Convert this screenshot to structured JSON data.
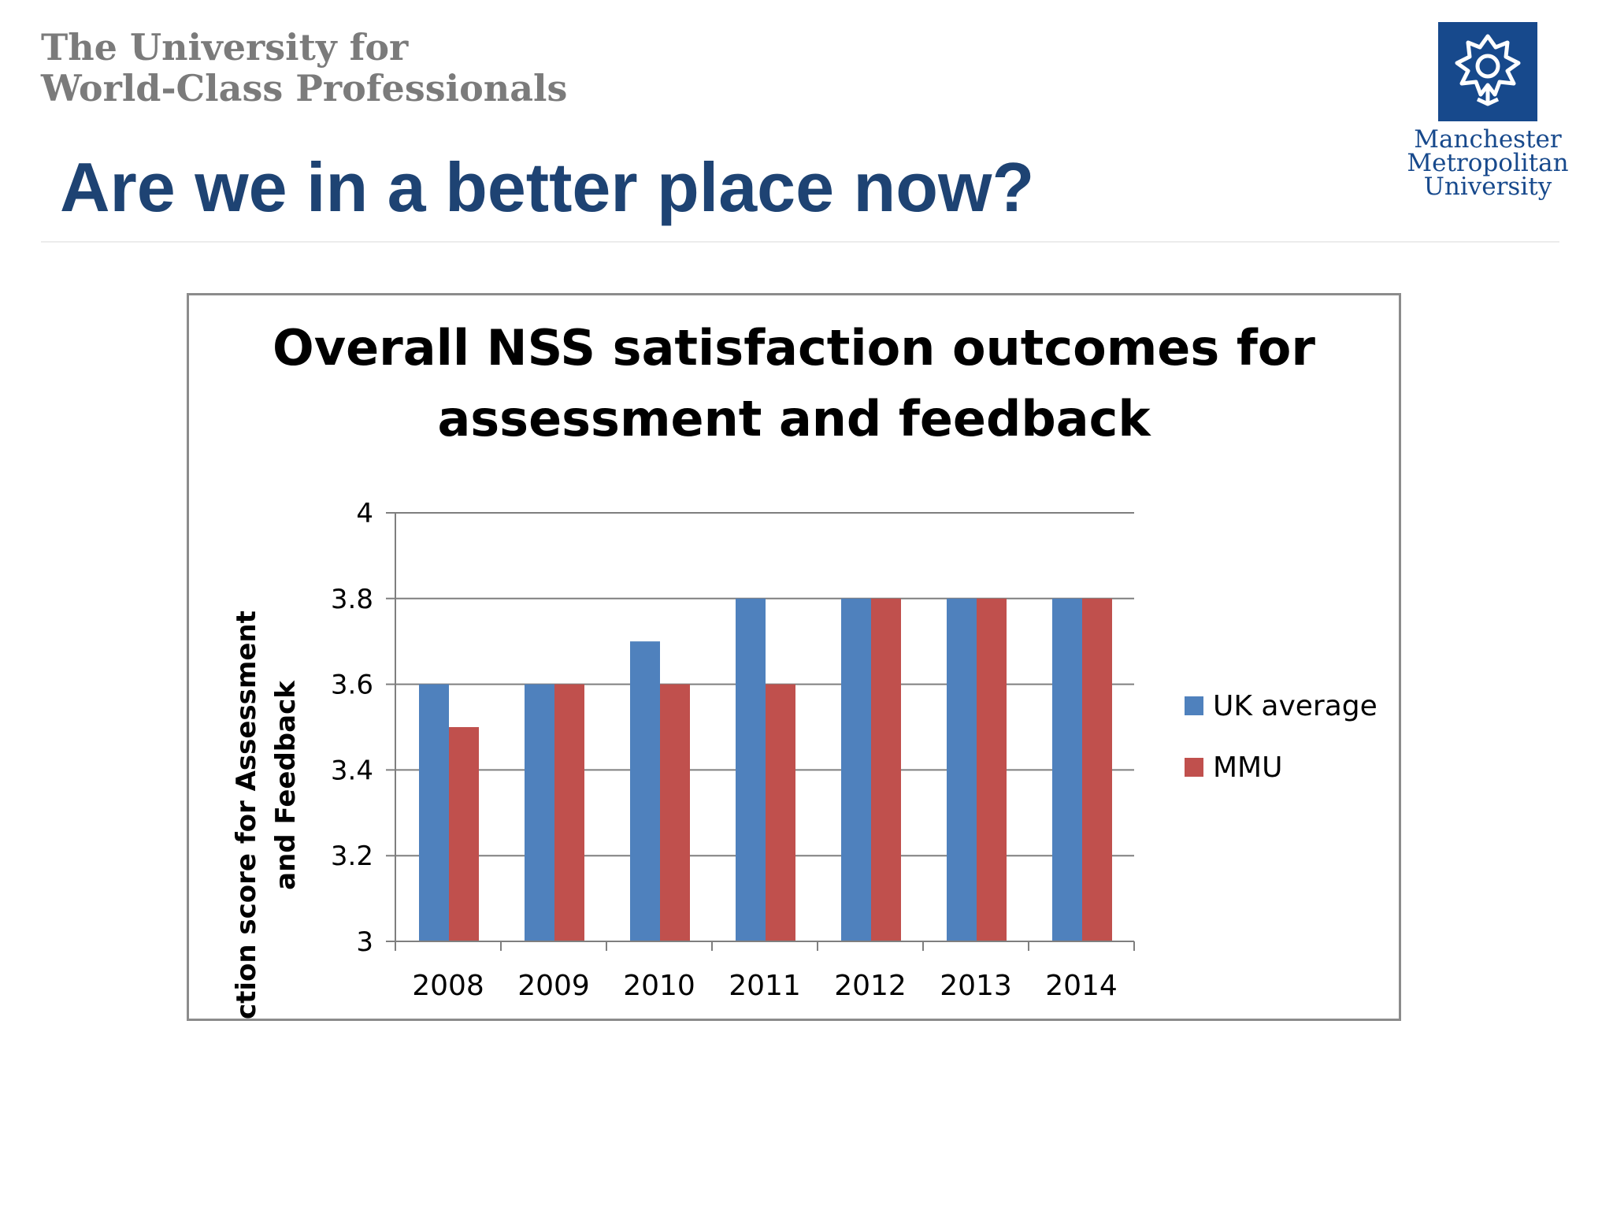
{
  "header": {
    "tagline_line1": "The University for",
    "tagline_line2": "World-Class Professionals",
    "title": "Are we in a better place now?"
  },
  "logo": {
    "icon": "rose-emblem-icon",
    "line1": "Manchester",
    "line2": "Metropolitan",
    "line3": "University",
    "color": "#17498c"
  },
  "colors": {
    "title": "#1e4373",
    "uk_average": "#4f81bd",
    "mmu": "#c0504d"
  },
  "chart_data": {
    "type": "bar",
    "title_line1": "Overall NSS satisfaction outcomes for",
    "title_line2": "assessment and feedback",
    "ylabel_line1": "NSS satisfaction score for Assessment",
    "ylabel_line2": "and Feedback",
    "xlabel": "",
    "categories": [
      "2008",
      "2009",
      "2010",
      "2011",
      "2012",
      "2013",
      "2014"
    ],
    "series": [
      {
        "name": "UK average",
        "values": [
          3.6,
          3.6,
          3.7,
          3.8,
          3.8,
          3.8,
          3.8
        ]
      },
      {
        "name": "MMU",
        "values": [
          3.5,
          3.6,
          3.6,
          3.6,
          3.8,
          3.8,
          3.8
        ]
      }
    ],
    "ylim": [
      3,
      4
    ],
    "yticks": [
      "3",
      "3.2",
      "3.4",
      "3.6",
      "3.8",
      "4"
    ],
    "grid": true,
    "legend": "right"
  }
}
